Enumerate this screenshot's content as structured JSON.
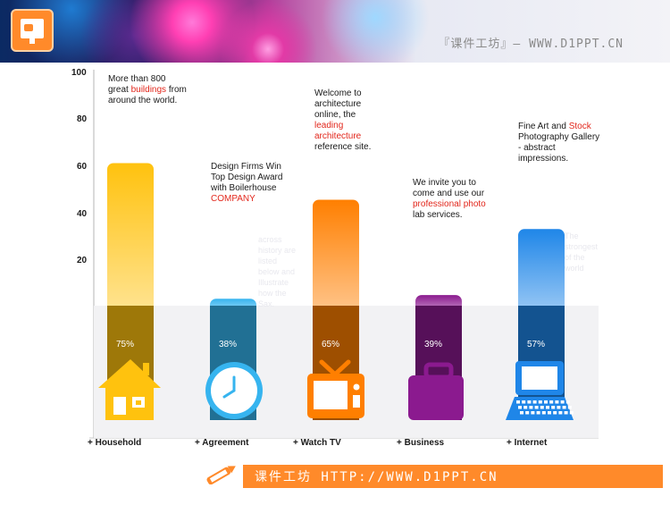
{
  "header": {
    "title": "『课件工坊』— WWW.D1PPT.CN",
    "logo_icon": "presentation-icon"
  },
  "footer": {
    "text": "课件工坊 HTTP://WWW.D1PPT.CN",
    "icon": "pencil-icon",
    "accent": "#ff8a2a"
  },
  "chart_data": {
    "type": "bar",
    "categories": [
      "+ Household",
      "+ Agreement",
      "+ Watch TV",
      "+ Business",
      "+ Internet"
    ],
    "values": [
      75,
      38,
      65,
      39,
      57
    ],
    "value_labels": [
      "75%",
      "38%",
      "65%",
      "39%",
      "57%"
    ],
    "ylim": [
      0,
      100
    ],
    "yticks": [
      "100",
      "80",
      "60",
      "40",
      "20"
    ],
    "bar_colors": [
      "#ffc20e",
      "#36b4ef",
      "#ff7f00",
      "#8b1a8f",
      "#1f86e8"
    ],
    "icons": [
      "house-icon",
      "clock-icon",
      "tv-icon",
      "briefcase-icon",
      "laptop-icon"
    ],
    "annotations": [
      {
        "pre": "More than 800 great ",
        "hl": "buildings",
        "post": " from around the world."
      },
      {
        "pre": "Design Firms Win Top Design Award with Boilerhouse ",
        "hl": "COMPANY",
        "post": ""
      },
      {
        "pre": "Welcome to architecture online, the ",
        "hl": "leading architecture",
        "post": " reference site."
      },
      {
        "pre": "We invite you to come and use our ",
        "hl": "professional photo",
        "post": " lab services."
      },
      {
        "pre": "Fine Art and ",
        "hl": "Stock",
        "post": " Photography Gallery - abstract impressions."
      }
    ],
    "faint_texts": [
      "across history are listed below and Illustrate how the Sax.",
      "The strongest of the world"
    ]
  }
}
